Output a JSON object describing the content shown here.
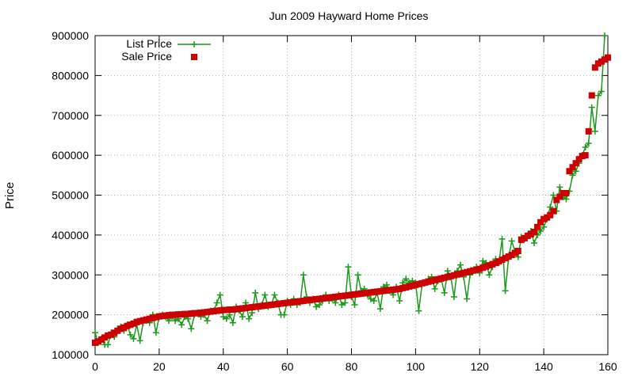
{
  "chart_data": {
    "type": "line",
    "title": "Jun 2009 Hayward Home Prices",
    "xlabel": "",
    "ylabel": "Price",
    "xlim": [
      0,
      160
    ],
    "ylim": [
      100000,
      900000
    ],
    "xticks": [
      "0",
      "20",
      "40",
      "60",
      "80",
      "100",
      "120",
      "140",
      "160"
    ],
    "yticks": [
      "100000",
      "200000",
      "300000",
      "400000",
      "500000",
      "600000",
      "700000",
      "800000",
      "900000"
    ],
    "grid": true,
    "legend_position": "top-left",
    "colors": {
      "list": "#1a9a1a",
      "sale": "#cc0000"
    },
    "series": [
      {
        "name": "List Price",
        "style": "line+plus-markers",
        "x": [
          1,
          2,
          3,
          4,
          5,
          6,
          7,
          8,
          9,
          10,
          11,
          12,
          13,
          14,
          15,
          16,
          17,
          18,
          19,
          20,
          21,
          22,
          23,
          24,
          25,
          26,
          27,
          28,
          29,
          30,
          31,
          32,
          33,
          34,
          35,
          36,
          37,
          38,
          39,
          40,
          41,
          42,
          43,
          44,
          45,
          46,
          47,
          48,
          49,
          50,
          51,
          52,
          53,
          54,
          55,
          56,
          57,
          58,
          59,
          60,
          61,
          62,
          63,
          64,
          65,
          66,
          67,
          68,
          69,
          70,
          71,
          72,
          73,
          74,
          75,
          76,
          77,
          78,
          79,
          80,
          81,
          82,
          83,
          84,
          85,
          86,
          87,
          88,
          89,
          90,
          91,
          92,
          93,
          94,
          95,
          96,
          97,
          98,
          99,
          100,
          101,
          102,
          103,
          104,
          105,
          106,
          107,
          108,
          109,
          110,
          111,
          112,
          113,
          114,
          115,
          116,
          117,
          118,
          119,
          120,
          121,
          122,
          123,
          124,
          125,
          126,
          127,
          128,
          129,
          130,
          131,
          132,
          133,
          134,
          135,
          136,
          137,
          138,
          139,
          140,
          141,
          142,
          143,
          144,
          145,
          146,
          147,
          148,
          149,
          150,
          151,
          152,
          153,
          154,
          155,
          156,
          157,
          158,
          159,
          160
        ],
        "values": [
          155000,
          130000,
          140000,
          125000,
          125000,
          155000,
          145000,
          165000,
          170000,
          160000,
          175000,
          150000,
          140000,
          175000,
          135000,
          180000,
          185000,
          180000,
          200000,
          155000,
          195000,
          200000,
          195000,
          185000,
          195000,
          185000,
          190000,
          175000,
          195000,
          190000,
          165000,
          200000,
          205000,
          195000,
          200000,
          185000,
          210000,
          210000,
          230000,
          250000,
          195000,
          190000,
          200000,
          180000,
          220000,
          210000,
          195000,
          230000,
          190000,
          205000,
          255000,
          215000,
          225000,
          250000,
          220000,
          225000,
          250000,
          230000,
          200000,
          200000,
          235000,
          225000,
          240000,
          225000,
          230000,
          300000,
          245000,
          230000,
          240000,
          220000,
          225000,
          235000,
          250000,
          235000,
          240000,
          230000,
          250000,
          225000,
          230000,
          320000,
          245000,
          225000,
          300000,
          260000,
          265000,
          250000,
          240000,
          235000,
          255000,
          215000,
          270000,
          275000,
          260000,
          250000,
          270000,
          235000,
          280000,
          290000,
          280000,
          285000,
          280000,
          210000,
          275000,
          280000,
          290000,
          295000,
          265000,
          285000,
          290000,
          255000,
          310000,
          295000,
          245000,
          310000,
          325000,
          295000,
          240000,
          300000,
          310000,
          320000,
          305000,
          335000,
          330000,
          300000,
          320000,
          340000,
          330000,
          390000,
          260000,
          340000,
          385000,
          360000,
          345000,
          395000,
          390000,
          400000,
          410000,
          380000,
          400000,
          410000,
          420000,
          440000,
          470000,
          500000,
          460000,
          520000,
          495000,
          490000,
          510000,
          550000,
          560000,
          580000,
          600000,
          620000,
          630000,
          720000,
          660000,
          750000,
          760000,
          900000
        ],
        "x_override": [
          0,
          1,
          2,
          3,
          4,
          5,
          6,
          7,
          8,
          9,
          10,
          11,
          12,
          13,
          14,
          15,
          16,
          17,
          18,
          19,
          20,
          21,
          22,
          23,
          24,
          25,
          26,
          27,
          28,
          29,
          30,
          31,
          32,
          33,
          34,
          35,
          36,
          37,
          38,
          39,
          40,
          41,
          42,
          43,
          44,
          45,
          46,
          47,
          48,
          49,
          50,
          51,
          52,
          53,
          54,
          55,
          56,
          57,
          58,
          59,
          60,
          61,
          62,
          63,
          64,
          65,
          66,
          67,
          68,
          69,
          70,
          71,
          72,
          73,
          74,
          75,
          76,
          77,
          78,
          79,
          80,
          81,
          82,
          83,
          84,
          85,
          86,
          87,
          88,
          89,
          90,
          91,
          92,
          93,
          94,
          95,
          96,
          97,
          98,
          99,
          100,
          101,
          102,
          103,
          104,
          105,
          106,
          107,
          108,
          109,
          110,
          111,
          112,
          113,
          114,
          115,
          116,
          117,
          118,
          119,
          120,
          121,
          122,
          123,
          124,
          125,
          126,
          127,
          128,
          129,
          130,
          131,
          132,
          133,
          134,
          135,
          136,
          137,
          138,
          139,
          140,
          141,
          142,
          143,
          144,
          145,
          146,
          147,
          148,
          149,
          150,
          151,
          152,
          153,
          154,
          155,
          156,
          157,
          158,
          159
        ]
      },
      {
        "name": "Sale Price",
        "style": "square-markers",
        "x": [
          0,
          1,
          2,
          3,
          4,
          5,
          6,
          7,
          8,
          9,
          10,
          11,
          12,
          13,
          14,
          15,
          16,
          17,
          18,
          19,
          20,
          21,
          22,
          23,
          24,
          25,
          26,
          27,
          28,
          29,
          30,
          31,
          32,
          33,
          34,
          35,
          36,
          37,
          38,
          39,
          40,
          41,
          42,
          43,
          44,
          45,
          46,
          47,
          48,
          49,
          50,
          51,
          52,
          53,
          54,
          55,
          56,
          57,
          58,
          59,
          60,
          61,
          62,
          63,
          64,
          65,
          66,
          67,
          68,
          69,
          70,
          71,
          72,
          73,
          74,
          75,
          76,
          77,
          78,
          79,
          80,
          81,
          82,
          83,
          84,
          85,
          86,
          87,
          88,
          89,
          90,
          91,
          92,
          93,
          94,
          95,
          96,
          97,
          98,
          99,
          100,
          101,
          102,
          103,
          104,
          105,
          106,
          107,
          108,
          109,
          110,
          111,
          112,
          113,
          114,
          115,
          116,
          117,
          118,
          119,
          120,
          121,
          122,
          123,
          124,
          125,
          126,
          127,
          128,
          129,
          130,
          131,
          132,
          133,
          134,
          135,
          136,
          137,
          138,
          139,
          140,
          141,
          142,
          143,
          144,
          145,
          146,
          147,
          148,
          149,
          150,
          151,
          152,
          153,
          154,
          155,
          156,
          157,
          158,
          159,
          160
        ],
        "values": [
          130000,
          133000,
          138000,
          143000,
          148000,
          150000,
          155000,
          160000,
          165000,
          168000,
          172000,
          175000,
          178000,
          182000,
          184000,
          186000,
          188000,
          190000,
          192000,
          194000,
          196000,
          197000,
          198000,
          199000,
          200000,
          200000,
          201000,
          201000,
          202000,
          202000,
          203000,
          204000,
          204000,
          205000,
          206000,
          207000,
          208000,
          209000,
          210000,
          211000,
          212000,
          212000,
          213000,
          213000,
          214000,
          215000,
          216000,
          217000,
          218000,
          219000,
          220000,
          221000,
          222000,
          223000,
          224000,
          225000,
          226000,
          227000,
          228000,
          229000,
          230000,
          231000,
          232000,
          233000,
          234000,
          235000,
          236000,
          237000,
          238000,
          239000,
          240000,
          241000,
          242000,
          243000,
          244000,
          245000,
          246000,
          247000,
          248000,
          249000,
          250000,
          251000,
          252000,
          253000,
          254000,
          255000,
          256000,
          257000,
          258000,
          259000,
          260000,
          261000,
          262000,
          263000,
          264000,
          265000,
          267000,
          269000,
          271000,
          273000,
          275000,
          277000,
          279000,
          281000,
          283000,
          285000,
          287000,
          289000,
          291000,
          293000,
          295000,
          297000,
          299000,
          301000,
          303000,
          305000,
          307000,
          309000,
          311000,
          313000,
          315000,
          318000,
          321000,
          324000,
          327000,
          330000,
          334000,
          338000,
          342000,
          346000,
          350000,
          355000,
          360000,
          388000,
          392000,
          398000,
          402000,
          408000,
          420000,
          432000,
          440000,
          444000,
          450000,
          460000,
          488000,
          496000,
          505000,
          505000,
          560000,
          570000,
          580000,
          590000,
          598000,
          600000,
          660000,
          750000,
          820000,
          830000,
          835000,
          840000,
          845000
        ]
      }
    ]
  }
}
